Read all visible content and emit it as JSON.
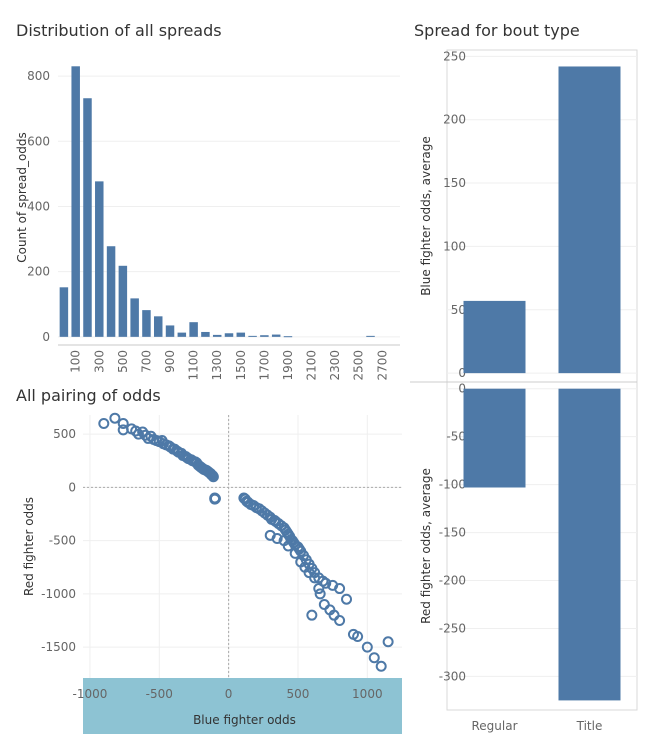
{
  "chart_data": [
    {
      "id": "histogram",
      "type": "bar",
      "title": "Distribution of all spreads",
      "xlabel": "",
      "ylabel": "Count of spread_odds",
      "categories": [
        "0",
        "100",
        "200",
        "300",
        "400",
        "500",
        "600",
        "700",
        "800",
        "900",
        "1000",
        "1100",
        "1200",
        "1300",
        "1400",
        "1500",
        "1600",
        "1700",
        "1800",
        "1900",
        "2000",
        "2100",
        "2200",
        "2300",
        "2400",
        "2500",
        "2600",
        "2700",
        "2800"
      ],
      "values": [
        152,
        830,
        732,
        477,
        278,
        218,
        118,
        82,
        63,
        35,
        13,
        45,
        15,
        6,
        11,
        13,
        3,
        5,
        7,
        2,
        0,
        0,
        0,
        0,
        0,
        0,
        3,
        0,
        0
      ],
      "tick_labels": [
        "100",
        "300",
        "500",
        "700",
        "900",
        "1100",
        "1300",
        "1500",
        "1700",
        "1900",
        "2100",
        "2300",
        "2500",
        "2700"
      ],
      "y_ticks": [
        0,
        200,
        400,
        600,
        800
      ],
      "ylim": [
        -25,
        880
      ]
    },
    {
      "id": "bout-type",
      "type": "bar",
      "title": "Spread for bout type",
      "categories": [
        "Regular",
        "Title"
      ],
      "series": [
        {
          "ylabel": "Blue fighter odds, average",
          "values": [
            57,
            242
          ],
          "y_ticks": [
            0,
            50,
            100,
            150,
            200,
            250
          ],
          "ylim": [
            -7,
            255
          ]
        },
        {
          "ylabel": "Red fighter odds, average",
          "values": [
            -103,
            -325
          ],
          "y_ticks": [
            0,
            -50,
            -100,
            -150,
            -200,
            -250,
            -300
          ],
          "ylim": [
            -335,
            7
          ]
        }
      ]
    },
    {
      "id": "scatter",
      "type": "scatter",
      "title": "All pairing of odds",
      "xlabel": "Blue fighter odds",
      "ylabel": "Red fighter odds",
      "x_ticks": [
        -1000,
        -500,
        0,
        500,
        1000
      ],
      "y_ticks": [
        500,
        0,
        -500,
        -1000,
        -1500
      ],
      "xlim": [
        -1050,
        1250
      ],
      "ylim": [
        -1790,
        680
      ],
      "points": [
        [
          -900,
          600
        ],
        [
          -820,
          650
        ],
        [
          -760,
          600
        ],
        [
          -760,
          540
        ],
        [
          -700,
          550
        ],
        [
          -670,
          530
        ],
        [
          -650,
          500
        ],
        [
          -620,
          520
        ],
        [
          -600,
          490
        ],
        [
          -580,
          460
        ],
        [
          -560,
          480
        ],
        [
          -540,
          450
        ],
        [
          -520,
          440
        ],
        [
          -500,
          430
        ],
        [
          -480,
          440
        ],
        [
          -470,
          410
        ],
        [
          -450,
          400
        ],
        [
          -430,
          390
        ],
        [
          -420,
          380
        ],
        [
          -400,
          360
        ],
        [
          -390,
          360
        ],
        [
          -370,
          340
        ],
        [
          -360,
          330
        ],
        [
          -340,
          320
        ],
        [
          -330,
          300
        ],
        [
          -310,
          290
        ],
        [
          -300,
          280
        ],
        [
          -290,
          270
        ],
        [
          -270,
          260
        ],
        [
          -260,
          250
        ],
        [
          -240,
          240
        ],
        [
          -230,
          230
        ],
        [
          -220,
          210
        ],
        [
          -210,
          200
        ],
        [
          -200,
          190
        ],
        [
          -190,
          180
        ],
        [
          -180,
          170
        ],
        [
          -170,
          165
        ],
        [
          -160,
          160
        ],
        [
          -150,
          150
        ],
        [
          -140,
          140
        ],
        [
          -130,
          130
        ],
        [
          -125,
          120
        ],
        [
          -115,
          110
        ],
        [
          -110,
          100
        ],
        [
          -100,
          -100
        ],
        [
          -100,
          -110
        ],
        [
          -95,
          -105
        ],
        [
          110,
          -100
        ],
        [
          120,
          -110
        ],
        [
          130,
          -130
        ],
        [
          140,
          -140
        ],
        [
          160,
          -160
        ],
        [
          180,
          -170
        ],
        [
          200,
          -190
        ],
        [
          220,
          -200
        ],
        [
          240,
          -220
        ],
        [
          260,
          -240
        ],
        [
          280,
          -260
        ],
        [
          300,
          -280
        ],
        [
          310,
          -300
        ],
        [
          330,
          -310
        ],
        [
          340,
          -320
        ],
        [
          360,
          -340
        ],
        [
          380,
          -360
        ],
        [
          400,
          -380
        ],
        [
          410,
          -400
        ],
        [
          420,
          -420
        ],
        [
          430,
          -440
        ],
        [
          440,
          -460
        ],
        [
          450,
          -490
        ],
        [
          460,
          -500
        ],
        [
          470,
          -520
        ],
        [
          480,
          -540
        ],
        [
          500,
          -560
        ],
        [
          510,
          -580
        ],
        [
          520,
          -600
        ],
        [
          540,
          -640
        ],
        [
          560,
          -680
        ],
        [
          580,
          -720
        ],
        [
          600,
          -760
        ],
        [
          620,
          -800
        ],
        [
          650,
          -850
        ],
        [
          680,
          -880
        ],
        [
          700,
          -900
        ],
        [
          750,
          -920
        ],
        [
          800,
          -950
        ],
        [
          300,
          -450
        ],
        [
          350,
          -480
        ],
        [
          400,
          -500
        ],
        [
          430,
          -550
        ],
        [
          480,
          -620
        ],
        [
          520,
          -700
        ],
        [
          550,
          -750
        ],
        [
          580,
          -800
        ],
        [
          620,
          -850
        ],
        [
          650,
          -950
        ],
        [
          660,
          -1000
        ],
        [
          690,
          -1100
        ],
        [
          730,
          -1150
        ],
        [
          760,
          -1200
        ],
        [
          800,
          -1250
        ],
        [
          850,
          -1050
        ],
        [
          600,
          -1200
        ],
        [
          900,
          -1380
        ],
        [
          930,
          -1400
        ],
        [
          1000,
          -1500
        ],
        [
          1050,
          -1600
        ],
        [
          1100,
          -1680
        ],
        [
          1150,
          -1450
        ]
      ]
    }
  ]
}
